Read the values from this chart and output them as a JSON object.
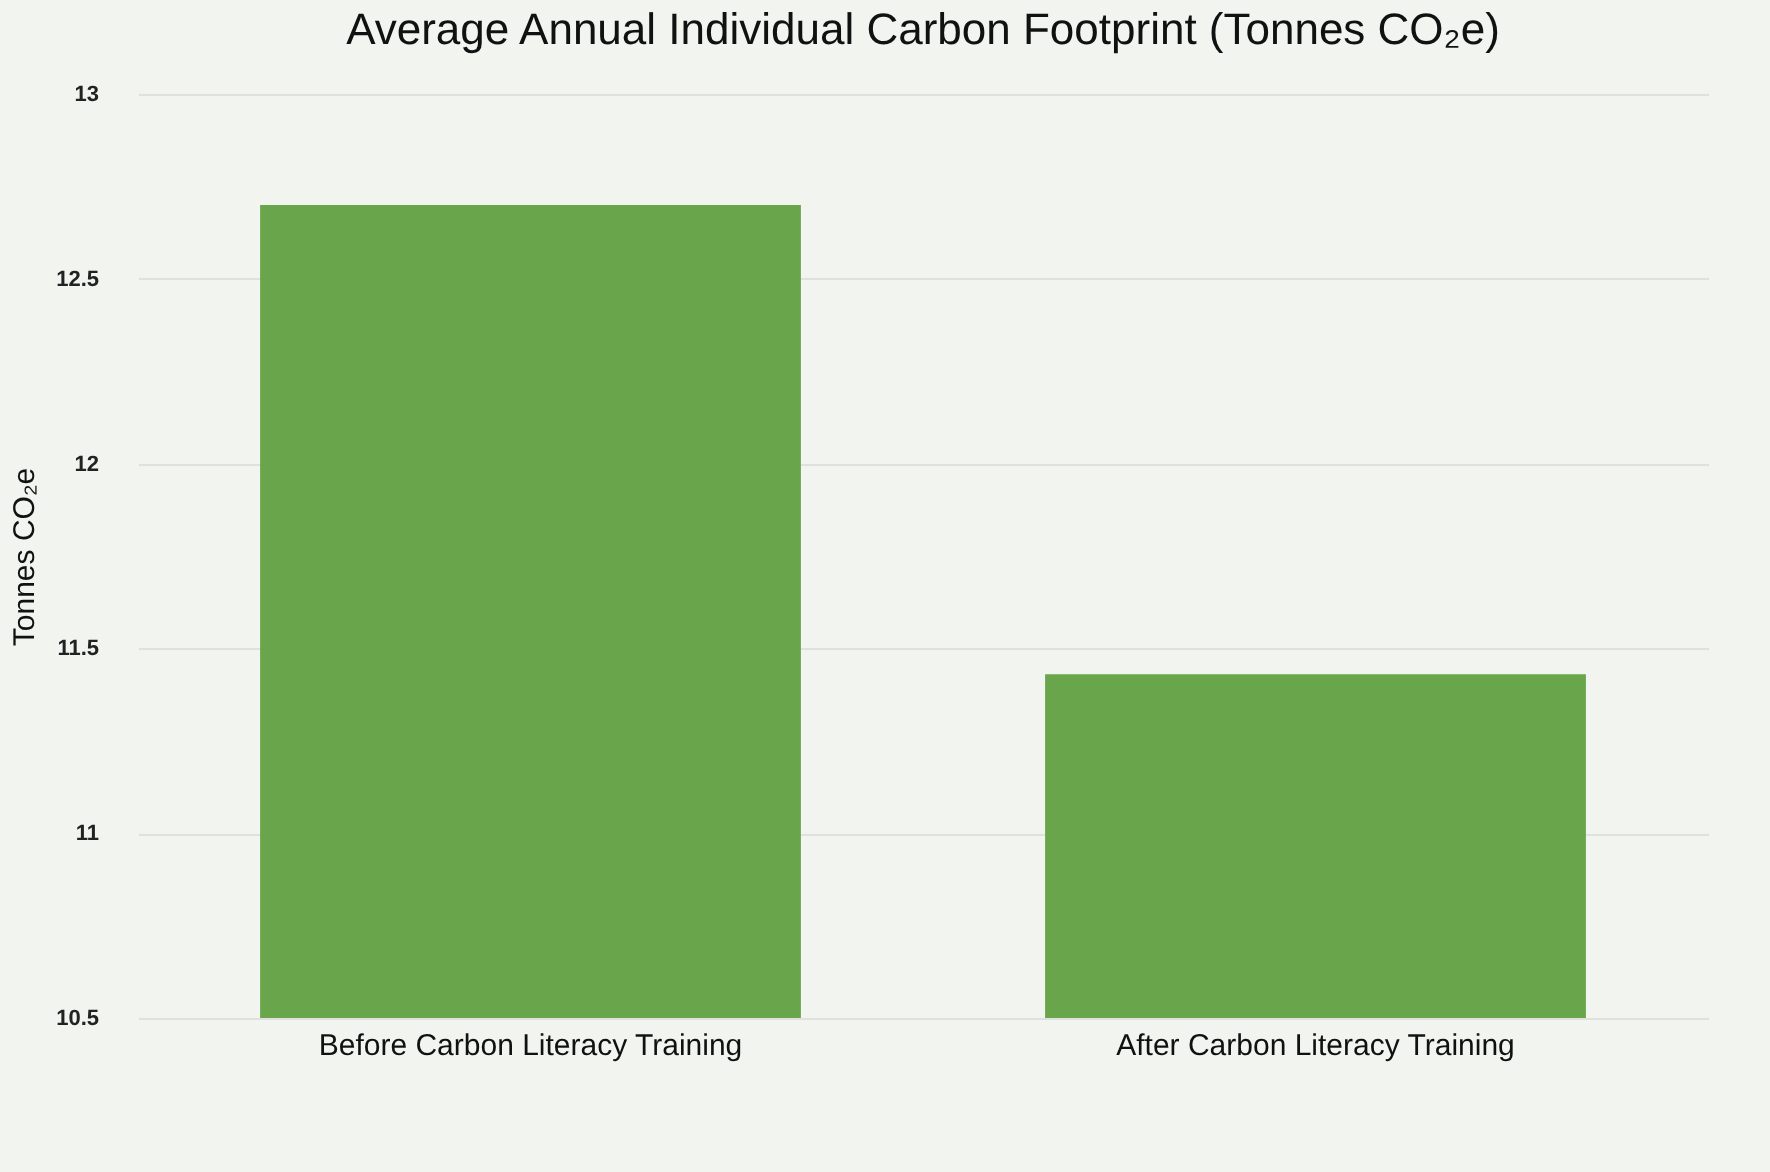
{
  "chart_data": {
    "type": "bar",
    "title": "Average Annual Individual Carbon Footprint (Tonnes CO₂e)",
    "ylabel": "Tonnes CO₂e",
    "categories": [
      "Before Carbon Literacy Training",
      "After Carbon Literacy Training"
    ],
    "values": [
      12.7,
      11.43
    ],
    "color": "#69a54a",
    "ylim": [
      10.5,
      13
    ],
    "yticks": [
      10.5,
      11,
      11.5,
      12,
      12.5,
      13
    ],
    "grid": "y"
  }
}
